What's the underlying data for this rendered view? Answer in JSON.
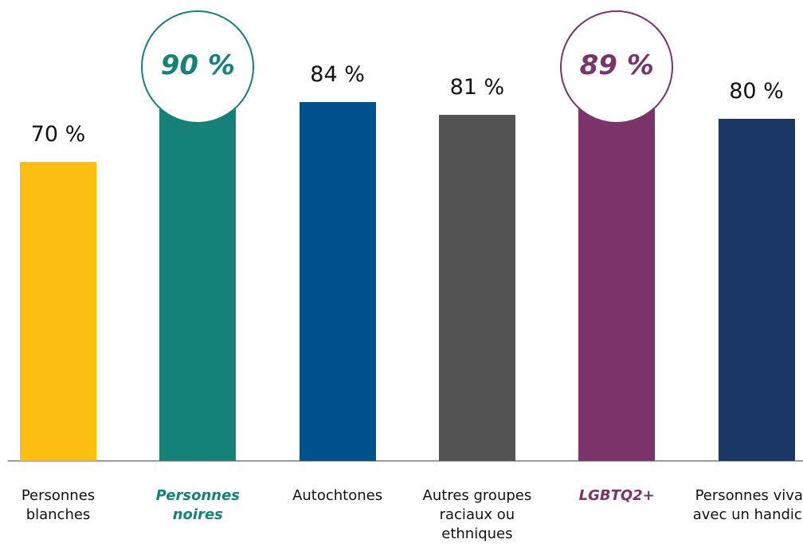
{
  "chart_data": {
    "type": "bar",
    "categories": [
      "Personnes blanches",
      "Personnes noires",
      "Autochtones",
      "Autres groupes raciaux ou ethniques",
      "LGBTQ2+",
      "Personnes vivant avec un handicap"
    ],
    "values": [
      70,
      90,
      84,
      81,
      89,
      80
    ],
    "value_labels": [
      "70 %",
      "90 %",
      "84 %",
      "81 %",
      "89 %",
      "80 %"
    ],
    "colors": [
      "#fdbe12",
      "#168178",
      "#00528a",
      "#535353",
      "#7a3469",
      "#1b3764"
    ],
    "highlighted": [
      false,
      true,
      false,
      false,
      true,
      false
    ],
    "ylim": [
      0,
      100
    ]
  }
}
